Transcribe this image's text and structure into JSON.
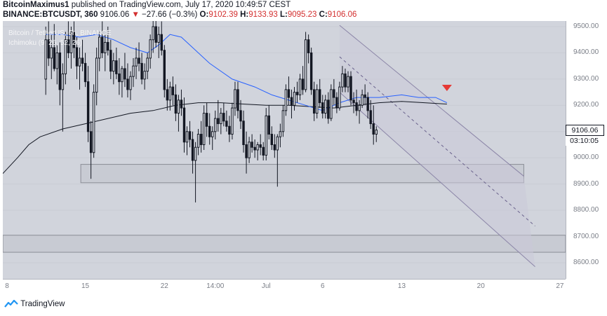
{
  "header": {
    "author": "BitcoinMaximus1",
    "published": "published on TradingView.com, July 17, 2020 10:49:57 CEST",
    "symbol": "BINANCE:BTCUSDT, 360",
    "last": "9106.06",
    "change": "−27.66 (−0.3%)",
    "o_label": "O:",
    "o_value": "9102.39",
    "h_label": "H:",
    "h_value": "9133.93",
    "l_label": "L:",
    "l_value": "9095.23",
    "c_label": "C:",
    "c_value": "9106.06"
  },
  "chart_data": {
    "type": "candlestick",
    "title": "Bitcoin / TetherUS, 6h, BINANCE",
    "study": "Ichimoku (9, 26, 52, 26)",
    "ylim": [
      8560,
      9500
    ],
    "y_ticks": [
      9500,
      9400,
      9300,
      9200,
      9100,
      9000,
      8900,
      8800,
      8700,
      8600
    ],
    "x_ticks": [
      {
        "label": "8",
        "x": 0
      },
      {
        "label": "15",
        "x": 7
      },
      {
        "label": "22",
        "x": 14
      },
      {
        "label": "14:00",
        "x": 18.5
      },
      {
        "label": "Jul",
        "x": 23
      },
      {
        "label": "6",
        "x": 28
      },
      {
        "label": "13",
        "x": 35
      },
      {
        "label": "20",
        "x": 42
      },
      {
        "label": "27",
        "x": 49
      }
    ],
    "xlim": [
      -0.3,
      49.5
    ],
    "last_price": "9106.06",
    "countdown": "03:10:05",
    "candle_start_x": 3.5,
    "candle_step_days": 0.25,
    "candles": [
      [
        9300,
        9500,
        9240,
        9450
      ],
      [
        9450,
        9520,
        9350,
        9380
      ],
      [
        9380,
        9470,
        9300,
        9420
      ],
      [
        9420,
        9510,
        9330,
        9340
      ],
      [
        9340,
        9430,
        9280,
        9400
      ],
      [
        9400,
        9440,
        9200,
        9260
      ],
      [
        9260,
        9360,
        9100,
        9320
      ],
      [
        9320,
        9480,
        9280,
        9450
      ],
      [
        9450,
        9520,
        9380,
        9400
      ],
      [
        9400,
        9500,
        9340,
        9480
      ],
      [
        9480,
        9520,
        9380,
        9420
      ],
      [
        9420,
        9460,
        9300,
        9350
      ],
      [
        9350,
        9420,
        9260,
        9380
      ],
      [
        9380,
        9450,
        9330,
        9360
      ],
      [
        9360,
        9400,
        9270,
        9290
      ],
      [
        9290,
        9350,
        9060,
        9100
      ],
      [
        9100,
        9140,
        8920,
        9020
      ],
      [
        9020,
        9280,
        9000,
        9250
      ],
      [
        9250,
        9420,
        9200,
        9380
      ],
      [
        9380,
        9480,
        9330,
        9460
      ],
      [
        9460,
        9520,
        9380,
        9400
      ],
      [
        9400,
        9470,
        9330,
        9440
      ],
      [
        9440,
        9500,
        9390,
        9410
      ],
      [
        9410,
        9450,
        9300,
        9330
      ],
      [
        9330,
        9400,
        9280,
        9370
      ],
      [
        9370,
        9420,
        9300,
        9320
      ],
      [
        9320,
        9380,
        9240,
        9290
      ],
      [
        9290,
        9350,
        9230,
        9340
      ],
      [
        9340,
        9400,
        9270,
        9300
      ],
      [
        9300,
        9360,
        9230,
        9260
      ],
      [
        9260,
        9330,
        9220,
        9310
      ],
      [
        9310,
        9380,
        9270,
        9350
      ],
      [
        9350,
        9420,
        9300,
        9380
      ],
      [
        9380,
        9440,
        9330,
        9360
      ],
      [
        9360,
        9400,
        9280,
        9300
      ],
      [
        9300,
        9360,
        9260,
        9330
      ],
      [
        9330,
        9400,
        9300,
        9380
      ],
      [
        9380,
        9470,
        9340,
        9450
      ],
      [
        9450,
        9530,
        9400,
        9500
      ],
      [
        9500,
        9560,
        9420,
        9440
      ],
      [
        9440,
        9500,
        9380,
        9470
      ],
      [
        9470,
        9520,
        9390,
        9410
      ],
      [
        9410,
        9430,
        9230,
        9260
      ],
      [
        9260,
        9300,
        9180,
        9220
      ],
      [
        9220,
        9290,
        9180,
        9270
      ],
      [
        9270,
        9310,
        9200,
        9240
      ],
      [
        9240,
        9280,
        9140,
        9170
      ],
      [
        9170,
        9240,
        9100,
        9220
      ],
      [
        9220,
        9260,
        9160,
        9190
      ],
      [
        9190,
        9230,
        9020,
        9060
      ],
      [
        9060,
        9120,
        9010,
        9100
      ],
      [
        9100,
        9140,
        9040,
        9070
      ],
      [
        9070,
        9100,
        8940,
        8990
      ],
      [
        8990,
        9060,
        8830,
        9040
      ],
      [
        9040,
        9110,
        9010,
        9090
      ],
      [
        9090,
        9140,
        9020,
        9050
      ],
      [
        9050,
        9200,
        9030,
        9170
      ],
      [
        9170,
        9210,
        9080,
        9120
      ],
      [
        9120,
        9170,
        9050,
        9080
      ],
      [
        9080,
        9120,
        9030,
        9100
      ],
      [
        9100,
        9180,
        9070,
        9150
      ],
      [
        9150,
        9220,
        9100,
        9130
      ],
      [
        9130,
        9190,
        9090,
        9170
      ],
      [
        9170,
        9210,
        9120,
        9140
      ],
      [
        9140,
        9180,
        9100,
        9120
      ],
      [
        9120,
        9160,
        9060,
        9090
      ],
      [
        9090,
        9210,
        9070,
        9190
      ],
      [
        9190,
        9290,
        9160,
        9260
      ],
      [
        9260,
        9290,
        9150,
        9180
      ],
      [
        9180,
        9220,
        9110,
        9140
      ],
      [
        9140,
        9180,
        9020,
        9050
      ],
      [
        9050,
        9100,
        8940,
        9000
      ],
      [
        9000,
        9080,
        8980,
        9060
      ],
      [
        9060,
        9090,
        9020,
        9040
      ],
      [
        9040,
        9070,
        9000,
        9030
      ],
      [
        9030,
        9060,
        8990,
        9050
      ],
      [
        9050,
        9090,
        9010,
        9040
      ],
      [
        9040,
        9060,
        8990,
        9010
      ],
      [
        9010,
        9190,
        8990,
        9160
      ],
      [
        9160,
        9200,
        9070,
        9090
      ],
      [
        9090,
        9120,
        9030,
        9050
      ],
      [
        9050,
        9090,
        9000,
        9030
      ],
      [
        9030,
        9090,
        8890,
        9080
      ],
      [
        9080,
        9130,
        9040,
        9100
      ],
      [
        9100,
        9200,
        9080,
        9180
      ],
      [
        9180,
        9280,
        9160,
        9260
      ],
      [
        9260,
        9310,
        9200,
        9230
      ],
      [
        9230,
        9260,
        9150,
        9200
      ],
      [
        9200,
        9270,
        9180,
        9250
      ],
      [
        9250,
        9290,
        9210,
        9240
      ],
      [
        9240,
        9320,
        9220,
        9300
      ],
      [
        9300,
        9350,
        9240,
        9260
      ],
      [
        9260,
        9480,
        9250,
        9450
      ],
      [
        9450,
        9470,
        9360,
        9400
      ],
      [
        9400,
        9420,
        9240,
        9260
      ],
      [
        9260,
        9290,
        9140,
        9170
      ],
      [
        9170,
        9280,
        9150,
        9260
      ],
      [
        9260,
        9300,
        9190,
        9210
      ],
      [
        9210,
        9240,
        9150,
        9170
      ],
      [
        9170,
        9240,
        9150,
        9220
      ],
      [
        9220,
        9250,
        9130,
        9150
      ],
      [
        9150,
        9280,
        9140,
        9260
      ],
      [
        9260,
        9300,
        9200,
        9230
      ],
      [
        9230,
        9250,
        9170,
        9190
      ],
      [
        9190,
        9290,
        9180,
        9270
      ],
      [
        9270,
        9350,
        9250,
        9320
      ],
      [
        9320,
        9340,
        9250,
        9270
      ],
      [
        9270,
        9330,
        9250,
        9310
      ],
      [
        9310,
        9330,
        9200,
        9220
      ],
      [
        9220,
        9250,
        9170,
        9210
      ],
      [
        9210,
        9260,
        9160,
        9180
      ],
      [
        9180,
        9220,
        9130,
        9200
      ],
      [
        9200,
        9260,
        9190,
        9240
      ],
      [
        9240,
        9280,
        9200,
        9230
      ],
      [
        9230,
        9250,
        9150,
        9180
      ],
      [
        9180,
        9220,
        9110,
        9130
      ],
      [
        9130,
        9200,
        9050,
        9090
      ],
      [
        9090,
        9120,
        9060,
        9106
      ]
    ],
    "ma_blue": [
      [
        3.5,
        9470
      ],
      [
        5,
        9470
      ],
      [
        6.5,
        9460
      ],
      [
        8,
        9470
      ],
      [
        9.5,
        9450
      ],
      [
        11,
        9420
      ],
      [
        12.5,
        9400
      ],
      [
        13.5,
        9430
      ],
      [
        14.5,
        9470
      ],
      [
        15.5,
        9460
      ],
      [
        16.5,
        9420
      ],
      [
        18,
        9360
      ],
      [
        20,
        9300
      ],
      [
        22,
        9270
      ],
      [
        23.5,
        9240
      ],
      [
        25,
        9220
      ],
      [
        26.5,
        9200
      ],
      [
        28,
        9180
      ],
      [
        29.5,
        9210
      ],
      [
        31,
        9230
      ],
      [
        33,
        9230
      ],
      [
        35,
        9240
      ],
      [
        36.5,
        9230
      ],
      [
        38,
        9230
      ],
      [
        39,
        9210
      ]
    ],
    "ma_black": [
      [
        -0.3,
        8940
      ],
      [
        1,
        9000
      ],
      [
        2,
        9050
      ],
      [
        3,
        9080
      ],
      [
        5,
        9110
      ],
      [
        7,
        9130
      ],
      [
        9,
        9150
      ],
      [
        11,
        9170
      ],
      [
        13,
        9180
      ],
      [
        15,
        9200
      ],
      [
        17,
        9210
      ],
      [
        19,
        9210
      ],
      [
        21,
        9205
      ],
      [
        23,
        9200
      ],
      [
        25,
        9200
      ],
      [
        27,
        9195
      ],
      [
        29,
        9190
      ],
      [
        31,
        9200
      ],
      [
        33,
        9210
      ],
      [
        35,
        9215
      ],
      [
        37,
        9210
      ],
      [
        39,
        9205
      ]
    ],
    "support_zones": [
      {
        "x0": 6.6,
        "x1": 45.8,
        "y0": 8905,
        "y1": 8975
      },
      {
        "x0": -0.3,
        "x1": 49.5,
        "y0": 8640,
        "y1": 8705
      }
    ],
    "channel": {
      "upper": [
        [
          29.5,
          9505
        ],
        [
          45.8,
          8930
        ]
      ],
      "lower": [
        [
          29.5,
          9250
        ],
        [
          46.8,
          8585
        ]
      ],
      "mid": [
        [
          29.5,
          9385
        ],
        [
          46.8,
          8740
        ]
      ]
    },
    "marker": {
      "x": 39,
      "y": 9265,
      "color": "#e53935"
    },
    "colors": {
      "candle": "#131722",
      "ma_blue": "#2962ff",
      "ma_black": "#131722",
      "zone_fill": "#c7c9d1",
      "zone_stroke": "#8a8d96",
      "channel_fill": "#cbc9d8",
      "channel_stroke": "#8c86a8"
    }
  },
  "footer": {
    "brand": "TradingView"
  }
}
